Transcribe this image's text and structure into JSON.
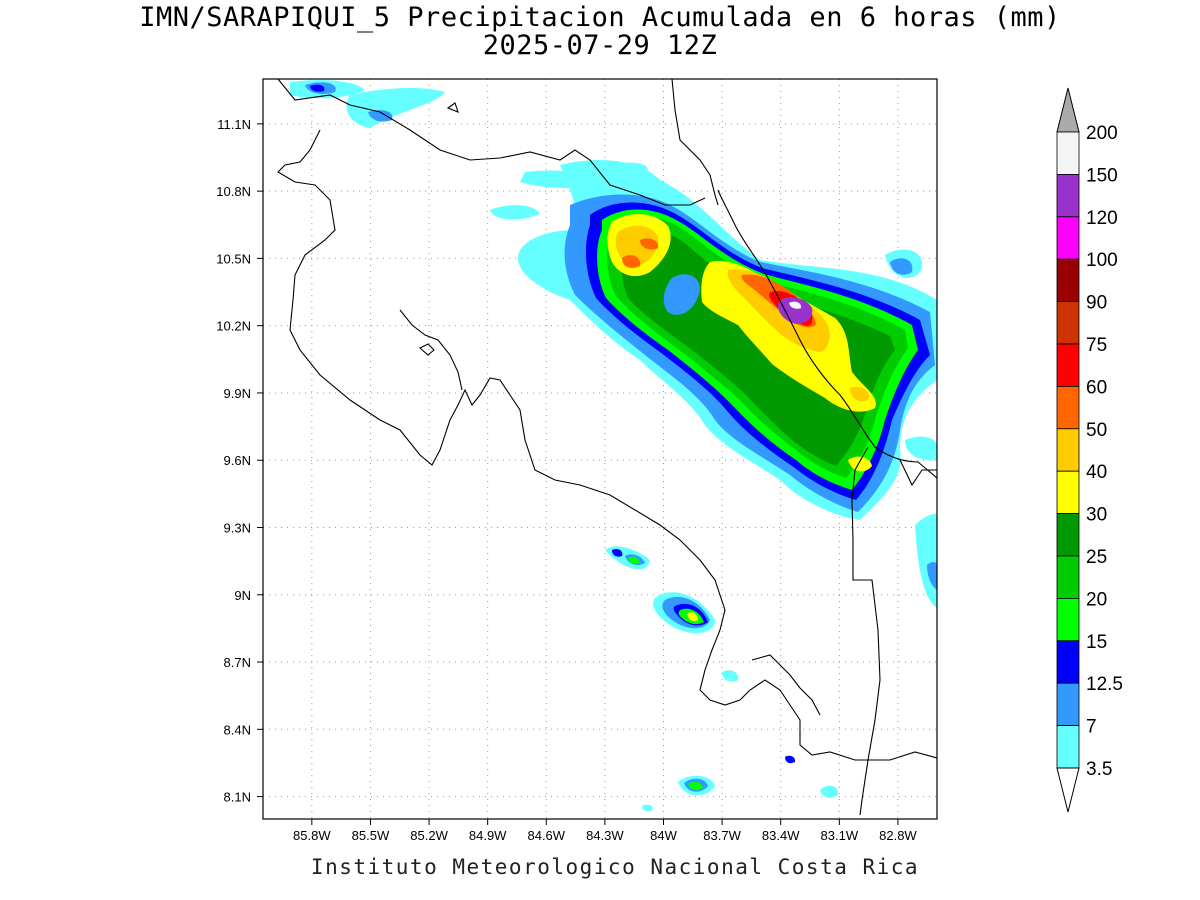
{
  "title_line1": "IMN/SARAPIQUI_5 Precipitacion Acumulada en 6 horas (mm)",
  "title_line2": "2025-07-29 12Z",
  "footer": "Instituto Meteorologico Nacional Costa Rica",
  "map": {
    "lon_range": [
      -86.05,
      -82.6
    ],
    "lat_range": [
      8.0,
      11.3
    ],
    "lon_ticks": [
      "85.8W",
      "85.5W",
      "85.2W",
      "84.9W",
      "84.6W",
      "84.3W",
      "84W",
      "83.7W",
      "83.4W",
      "83.1W",
      "82.8W"
    ],
    "lat_ticks": [
      "11.1N",
      "10.8N",
      "10.5N",
      "10.2N",
      "9.9N",
      "9.6N",
      "9.3N",
      "9N",
      "8.7N",
      "8.4N",
      "8.1N"
    ],
    "grid": "dotted"
  },
  "colorbar": {
    "labels": [
      "200",
      "150",
      "120",
      "100",
      "90",
      "75",
      "60",
      "50",
      "40",
      "30",
      "25",
      "20",
      "15",
      "12.5",
      "7",
      "3.5"
    ],
    "colors": [
      "#f5f5f5",
      "#9933cc",
      "#ff00ff",
      "#990000",
      "#cc3300",
      "#ff0000",
      "#ff6600",
      "#ffcc00",
      "#ffff00",
      "#009900",
      "#00cc00",
      "#00ff00",
      "#0000ff",
      "#3399ff",
      "#66ffff"
    ],
    "over_color": "#aaaaaa",
    "under_color": "#ffffff"
  }
}
